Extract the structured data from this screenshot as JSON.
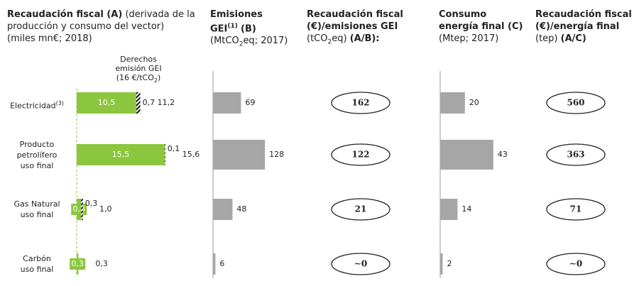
{
  "chart_data": [
    {
      "type": "stacked-hbar",
      "title": "Recaudación fiscal (A)",
      "title_rest": "(derivada de la producción y consumo del vector)",
      "subtitle": "(miles mn€; 2018)",
      "categories": [
        [
          "Electricidad"
        ],
        [
          "Producto",
          "petrolífero",
          "uso final"
        ],
        [
          "Gas Natural",
          "uso final"
        ],
        [
          "Carbón",
          "uso final"
        ]
      ],
      "category_note": {
        "index": 0,
        "text": "(3)"
      },
      "annotation": [
        "Derechos",
        "emisión GEI",
        "(16 €/tCO",
        "2",
        ")"
      ],
      "xlim": [
        0,
        20
      ],
      "series": [
        {
          "color": "#8cc63f",
          "values": [
            10.5,
            15.5,
            0.8,
            0.3
          ],
          "value_labels": [
            "10,5",
            "15,5",
            "0,8",
            "0,3"
          ]
        },
        {
          "name": "Derechos emisión GEI",
          "pattern": "hatch",
          "values": [
            0.7,
            0.1,
            0.3,
            0
          ],
          "value_labels": [
            "0,7",
            "0,1",
            "0,3",
            null
          ]
        }
      ],
      "totals": [
        11.2,
        15.6,
        1.0,
        0.3
      ],
      "total_labels": [
        "11,2",
        "15,6",
        "1,0",
        "0,3"
      ]
    },
    {
      "type": "bar",
      "title": "Emisiones",
      "title_line2": "GEI",
      "title_sup": "(1)",
      "title_end": "(B)",
      "subtitle": [
        "(MtCO",
        "2",
        "eq; 2017)"
      ],
      "color": "#a6a6a6",
      "xlim": [
        0,
        140
      ],
      "values": [
        69,
        128,
        48,
        6
      ]
    },
    {
      "type": "label",
      "title": "Recaudación fiscal",
      "title_line2": "(€)/emisiones GEI",
      "subtitle": [
        "(tCO",
        "2",
        "eq)"
      ],
      "title_end": "(A/B):",
      "values": [
        162,
        122,
        21,
        0
      ],
      "value_labels": [
        "162",
        "122",
        "21",
        "∼0"
      ]
    },
    {
      "type": "bar",
      "title": "Consumo",
      "title_line2": "energía final (C)",
      "subtitle": [
        "(Mtep; 2017)"
      ],
      "color": "#a6a6a6",
      "xlim": [
        0,
        50
      ],
      "values": [
        20,
        43,
        14,
        2
      ]
    },
    {
      "type": "label",
      "title": "Recaudación fiscal",
      "title_line2": "(€)/energía final",
      "subtitle": [
        "(tep)"
      ],
      "title_end": "(A/C)",
      "values": [
        560,
        363,
        71,
        0
      ],
      "value_labels": [
        "560",
        "363",
        "71",
        "∼0"
      ]
    }
  ]
}
